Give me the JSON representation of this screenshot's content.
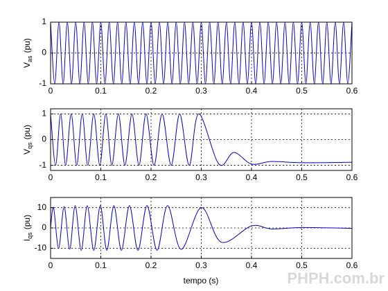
{
  "chart_data": [
    {
      "type": "line",
      "ylabel": {
        "main": "V",
        "sub": "as",
        "unit": "(pu)"
      },
      "xlim": [
        0,
        0.6
      ],
      "xticks": [
        0,
        0.1,
        0.2,
        0.3,
        0.4,
        0.5,
        0.6
      ],
      "ylim": [
        -1,
        1
      ],
      "yticks": [
        -1,
        0,
        1
      ],
      "grid": true,
      "series": [
        {
          "color": "#0000cc",
          "x": [
            0,
            0.0083,
            0.0167,
            0.025,
            0.0333,
            0.0417,
            0.05,
            0.0583,
            0.0667,
            0.075,
            0.0833,
            0.0917,
            0.1,
            0.1083,
            0.1167,
            0.125,
            0.1333,
            0.1417,
            0.15,
            0.1583,
            0.1667,
            0.175,
            0.1833,
            0.1917,
            0.2,
            0.2083,
            0.2167,
            0.225,
            0.2333,
            0.2417,
            0.25,
            0.2583,
            0.2667,
            0.275,
            0.2833,
            0.2917,
            0.3,
            0.3083,
            0.3167,
            0.325,
            0.3333,
            0.3417,
            0.35,
            0.3583,
            0.3667,
            0.375,
            0.3833,
            0.3917,
            0.4,
            0.4083,
            0.4167,
            0.425,
            0.4333,
            0.4417,
            0.45,
            0.4583,
            0.4667,
            0.475,
            0.4833,
            0.4917,
            0.5,
            0.5083,
            0.5167,
            0.525,
            0.5333,
            0.5417,
            0.55,
            0.5583,
            0.5667,
            0.575,
            0.5833,
            0.5917,
            0.6
          ],
          "values": [
            1,
            -1,
            1,
            -1,
            1,
            -1,
            1,
            -1,
            1,
            -1,
            1,
            -1,
            1,
            -1,
            1,
            -1,
            1,
            -1,
            1,
            -1,
            1,
            -1,
            1,
            -1,
            1,
            -1,
            1,
            -1,
            1,
            -1,
            1,
            -1,
            1,
            -1,
            1,
            -1,
            1,
            -1,
            1,
            -1,
            1,
            -1,
            1,
            -1,
            1,
            -1,
            1,
            -1,
            1,
            -1,
            1,
            -1,
            1,
            -1,
            1,
            -1,
            1,
            -1,
            1,
            -1,
            1,
            -1,
            1,
            -1,
            1,
            -1,
            1,
            -1,
            1,
            -1,
            1,
            -1,
            1
          ]
        }
      ]
    },
    {
      "type": "line",
      "ylabel": {
        "main": "V",
        "sub": "qs",
        "unit": "(pu)"
      },
      "xlim": [
        0,
        0.6
      ],
      "xticks": [
        0,
        0.1,
        0.2,
        0.3,
        0.4,
        0.5,
        0.6
      ],
      "ylim": [
        -1.2,
        1.2
      ],
      "yticks": [
        -1,
        0,
        1
      ],
      "grid": true,
      "series": [
        {
          "color": "#0000cc",
          "x": [
            0,
            0.01,
            0.02,
            0.03,
            0.041,
            0.052,
            0.063,
            0.074,
            0.086,
            0.098,
            0.11,
            0.122,
            0.135,
            0.148,
            0.162,
            0.176,
            0.19,
            0.206,
            0.222,
            0.24,
            0.257,
            0.276,
            0.295,
            0.335,
            0.365,
            0.4,
            0.44,
            0.5,
            0.6
          ],
          "values": [
            1,
            -1,
            1,
            -1,
            1,
            -1,
            1,
            -1,
            1,
            -1,
            1,
            -1,
            1,
            -1,
            1,
            -1,
            1,
            -1,
            1,
            -1,
            1,
            -1,
            1,
            -0.95,
            -0.5,
            -0.95,
            -0.85,
            -0.9,
            -0.88
          ]
        }
      ]
    },
    {
      "type": "line",
      "ylabel": {
        "main": "I",
        "sub": "qs",
        "unit": "(pu)"
      },
      "xlim": [
        0,
        0.6
      ],
      "xticks": [
        0,
        0.1,
        0.2,
        0.3,
        0.4,
        0.5,
        0.6
      ],
      "ylim": [
        -15,
        15
      ],
      "yticks": [
        -10,
        0,
        10
      ],
      "grid": true,
      "series": [
        {
          "color": "#0000cc",
          "x": [
            0,
            0.006,
            0.016,
            0.027,
            0.038,
            0.049,
            0.061,
            0.073,
            0.086,
            0.099,
            0.112,
            0.126,
            0.141,
            0.157,
            0.174,
            0.192,
            0.212,
            0.233,
            0.26,
            0.3,
            0.34,
            0.4,
            0.44,
            0.5,
            0.6
          ],
          "values": [
            0,
            10,
            -10,
            10.5,
            -10.5,
            11,
            -11,
            11,
            -11,
            11,
            -11,
            11,
            -11,
            11,
            -11,
            11,
            -11,
            11,
            -10.5,
            10,
            -7,
            1,
            -0.5,
            0.2,
            -0.2
          ]
        }
      ]
    }
  ],
  "x_label": "tempo (s)",
  "watermark": "PHPH.com.br"
}
